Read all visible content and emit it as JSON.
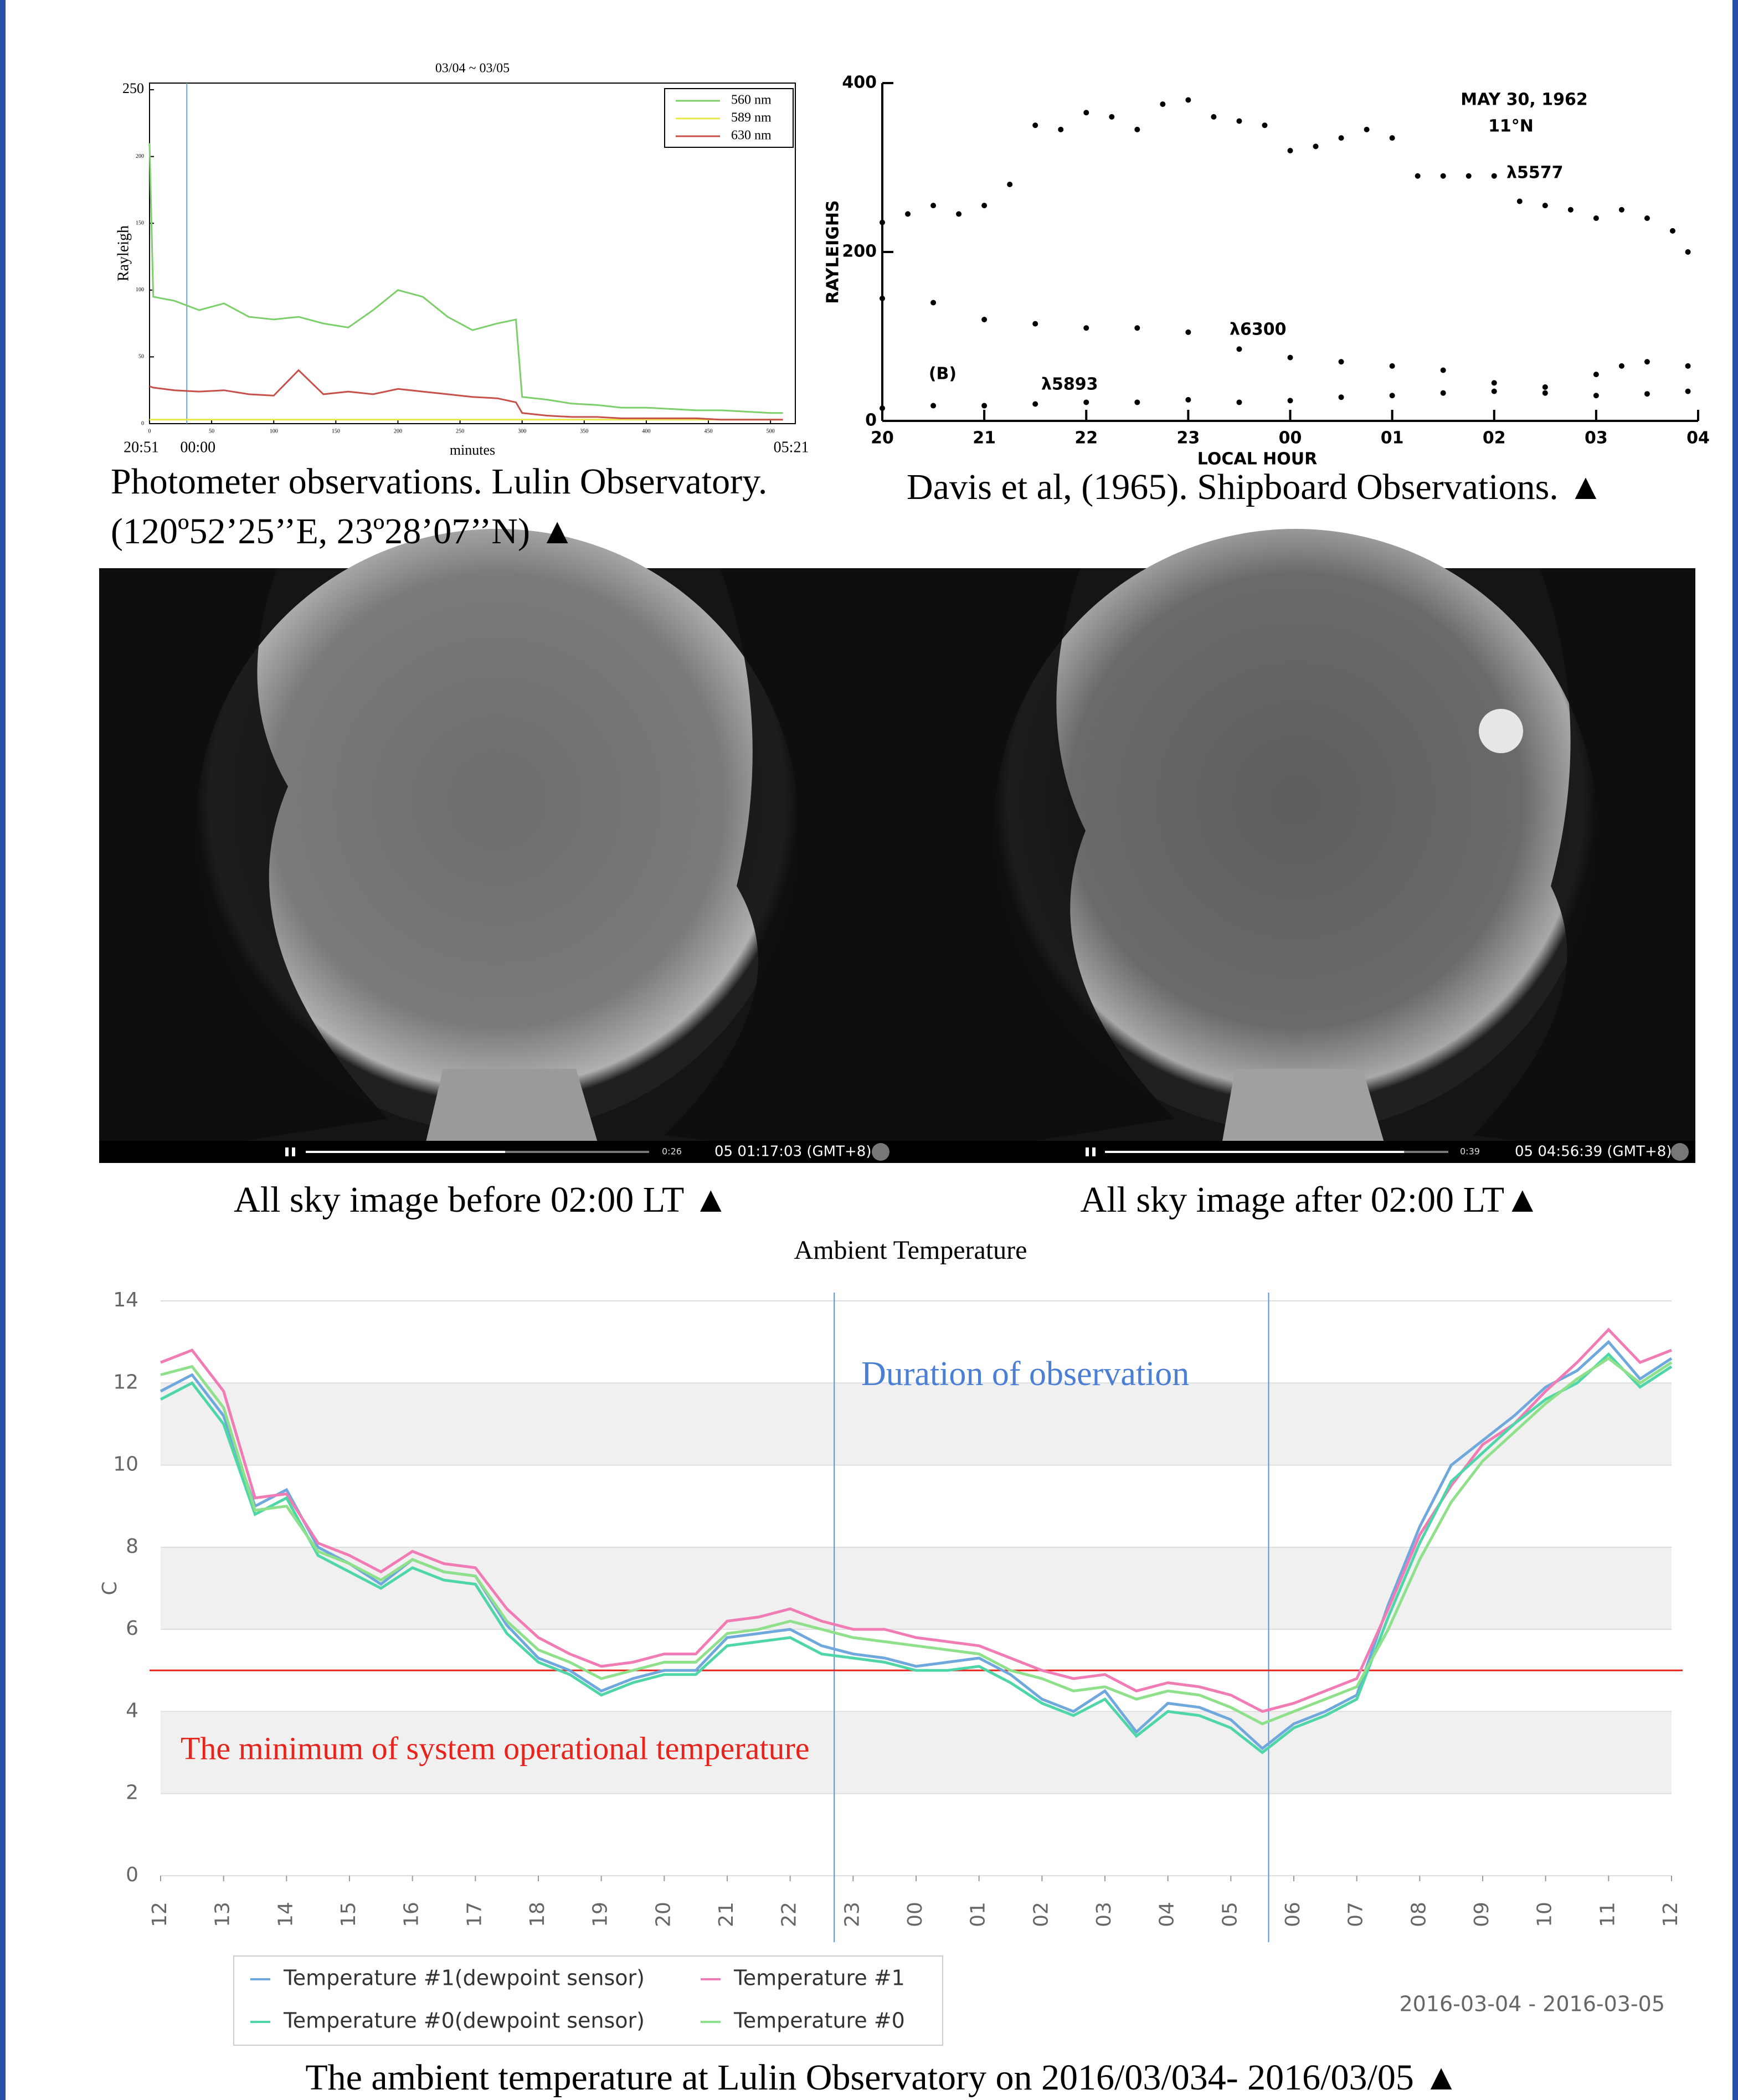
{
  "chart_data": [
    {
      "type": "line",
      "title": "03/04 ~ 03/05",
      "y_label": "Rayleigh",
      "x_label": "minutes",
      "x": [
        0,
        3,
        20,
        40,
        60,
        80,
        100,
        120,
        140,
        160,
        180,
        200,
        220,
        240,
        260,
        280,
        295,
        300,
        320,
        340,
        360,
        380,
        400,
        420,
        440,
        460,
        480,
        500,
        510
      ],
      "series": [
        {
          "name": "560 nm",
          "color": "#7ccf6a",
          "values": [
            210,
            95,
            92,
            85,
            90,
            80,
            78,
            80,
            75,
            72,
            85,
            100,
            95,
            80,
            70,
            75,
            78,
            20,
            18,
            15,
            14,
            12,
            12,
            11,
            10,
            10,
            9,
            8,
            8
          ]
        },
        {
          "name": "589 nm",
          "color": "#e8e84a",
          "values": [
            3,
            3,
            3,
            3,
            3,
            3,
            3,
            3,
            3,
            3,
            3,
            3,
            3,
            3,
            3,
            3,
            3,
            3,
            3,
            3,
            3,
            3,
            3,
            3,
            3,
            3,
            3,
            3,
            3
          ]
        },
        {
          "name": "630 nm",
          "color": "#c8504a",
          "values": [
            28,
            27,
            25,
            24,
            25,
            22,
            21,
            40,
            22,
            24,
            22,
            26,
            24,
            22,
            20,
            19,
            16,
            8,
            6,
            5,
            5,
            4,
            4,
            4,
            4,
            3,
            3,
            3,
            3
          ]
        }
      ],
      "xlim": [
        0,
        520
      ],
      "ylim": [
        0,
        255
      ],
      "xticks": [
        0,
        50,
        100,
        150,
        200,
        250,
        300,
        350,
        400,
        450,
        500
      ],
      "yticks": [
        0,
        50,
        100,
        150,
        200,
        250
      ],
      "x2ticks": [
        {
          "value": 0,
          "label": "20:51"
        },
        {
          "value": 30,
          "label": "00:00"
        },
        {
          "value": 510,
          "label": "05:21"
        }
      ],
      "vlines": [
        30
      ],
      "vline_color": "#6aa6c8",
      "legend": "upper right",
      "grid": false
    },
    {
      "type": "scatter",
      "y_label": "RAYLEIGHS",
      "x_label": "LOCAL HOUR",
      "annotations": [
        "MAY 30, 1962",
        "11°N",
        "(B)"
      ],
      "series": [
        {
          "name": "λ5577",
          "color": "#000000",
          "x": [
            20,
            20.25,
            20.5,
            20.75,
            21,
            21.25,
            21.5,
            21.75,
            22,
            22.25,
            22.5,
            22.75,
            23,
            23.25,
            23.5,
            23.75,
            24,
            24.25,
            24.5,
            24.75,
            25,
            25.25,
            25.5,
            25.75,
            26,
            26.25,
            26.5,
            26.75,
            27,
            27.25,
            27.5,
            27.75,
            27.9
          ],
          "values": [
            235,
            245,
            255,
            245,
            255,
            280,
            350,
            345,
            365,
            360,
            345,
            375,
            380,
            360,
            355,
            350,
            320,
            325,
            335,
            345,
            335,
            290,
            290,
            290,
            290,
            260,
            255,
            250,
            240,
            250,
            240,
            225,
            200
          ]
        },
        {
          "name": "λ6300",
          "color": "#000000",
          "x": [
            20,
            20.5,
            21,
            21.5,
            22,
            22.5,
            23,
            23.5,
            24,
            24.5,
            25,
            25.5,
            26,
            26.5,
            27,
            27.25,
            27.5,
            27.9
          ],
          "values": [
            145,
            140,
            120,
            115,
            110,
            110,
            105,
            85,
            75,
            70,
            65,
            60,
            45,
            40,
            55,
            65,
            70,
            65
          ]
        },
        {
          "name": "λ5893",
          "color": "#000000",
          "x": [
            20,
            20.5,
            21,
            21.5,
            22,
            22.5,
            23,
            23.5,
            24,
            24.5,
            25,
            25.5,
            26,
            26.5,
            27,
            27.5,
            27.9
          ],
          "values": [
            15,
            18,
            18,
            20,
            22,
            22,
            25,
            22,
            24,
            28,
            30,
            33,
            35,
            33,
            30,
            32,
            35
          ]
        }
      ],
      "xlim": [
        20,
        28
      ],
      "ylim": [
        0,
        400
      ],
      "xticks": [
        20,
        21,
        22,
        23,
        {
          "value": 24,
          "label": "00"
        },
        {
          "value": 25,
          "label": "01"
        },
        {
          "value": 26,
          "label": "02"
        },
        {
          "value": 27,
          "label": "03"
        },
        {
          "value": 28,
          "label": "04"
        }
      ],
      "yticks": [
        0,
        200,
        400
      ],
      "grid": false
    },
    {
      "type": "line",
      "title": "Ambient Temperature",
      "y_label": "C",
      "date_range": "2016-03-04 - 2016-03-05",
      "annotations": [
        "Duration of observation",
        "The minimum of system operational temperature"
      ],
      "x": [
        12,
        12.5,
        13,
        13.5,
        14,
        14.5,
        15,
        15.5,
        16,
        16.5,
        17,
        17.5,
        18,
        18.5,
        19,
        19.5,
        20,
        20.5,
        21,
        21.5,
        22,
        22.5,
        23,
        23.5,
        24,
        24.5,
        25,
        25.5,
        26,
        26.5,
        27,
        27.5,
        28,
        28.5,
        29,
        29.5,
        30,
        30.5,
        31,
        31.5,
        32,
        32.5,
        33,
        33.5,
        34,
        34.5,
        35,
        35.5,
        36
      ],
      "series": [
        {
          "name": "Temperature #1(dewpoint sensor)",
          "color": "#6fa8dc",
          "values": [
            11.8,
            12.2,
            11.2,
            9.0,
            9.4,
            8.0,
            7.6,
            7.1,
            7.7,
            7.4,
            7.3,
            6.1,
            5.3,
            5.0,
            4.5,
            4.8,
            5.0,
            5.0,
            5.8,
            5.9,
            6.0,
            5.6,
            5.4,
            5.3,
            5.1,
            5.2,
            5.3,
            4.9,
            4.3,
            4.0,
            4.5,
            3.5,
            4.2,
            4.1,
            3.8,
            3.1,
            3.7,
            4.0,
            4.4,
            6.6,
            8.5,
            10.0,
            10.6,
            11.2,
            11.9,
            12.3,
            13.0,
            12.1,
            12.6
          ]
        },
        {
          "name": "Temperature #1",
          "color": "#f07bb5",
          "values": [
            12.5,
            12.8,
            11.8,
            9.2,
            9.3,
            8.1,
            7.8,
            7.4,
            7.9,
            7.6,
            7.5,
            6.5,
            5.8,
            5.4,
            5.1,
            5.2,
            5.4,
            5.4,
            6.2,
            6.3,
            6.5,
            6.2,
            6.0,
            6.0,
            5.8,
            5.7,
            5.6,
            5.3,
            5.0,
            4.8,
            4.9,
            4.5,
            4.7,
            4.6,
            4.4,
            4.0,
            4.2,
            4.5,
            4.8,
            6.5,
            8.3,
            9.5,
            10.5,
            11.0,
            11.8,
            12.5,
            13.3,
            12.5,
            12.8
          ]
        },
        {
          "name": "Temperature #0(dewpoint sensor)",
          "color": "#4fd6a8",
          "values": [
            11.6,
            12.0,
            11.0,
            8.8,
            9.2,
            7.8,
            7.4,
            7.0,
            7.5,
            7.2,
            7.1,
            5.9,
            5.2,
            4.9,
            4.4,
            4.7,
            4.9,
            4.9,
            5.6,
            5.7,
            5.8,
            5.4,
            5.3,
            5.2,
            5.0,
            5.0,
            5.1,
            4.7,
            4.2,
            3.9,
            4.3,
            3.4,
            4.0,
            3.9,
            3.6,
            3.0,
            3.6,
            3.9,
            4.3,
            6.3,
            8.1,
            9.6,
            10.3,
            11.0,
            11.6,
            12.0,
            12.7,
            11.9,
            12.4
          ]
        },
        {
          "name": "Temperature #0",
          "color": "#8fe08a",
          "values": [
            12.2,
            12.4,
            11.4,
            8.9,
            9.0,
            7.9,
            7.6,
            7.2,
            7.7,
            7.4,
            7.3,
            6.2,
            5.5,
            5.2,
            4.8,
            5.0,
            5.2,
            5.2,
            5.9,
            6.0,
            6.2,
            6.0,
            5.8,
            5.7,
            5.6,
            5.5,
            5.4,
            5.0,
            4.8,
            4.5,
            4.6,
            4.3,
            4.5,
            4.4,
            4.1,
            3.7,
            4.0,
            4.3,
            4.6,
            6.0,
            7.7,
            9.1,
            10.1,
            10.8,
            11.5,
            12.1,
            12.6,
            12.0,
            12.5
          ]
        }
      ],
      "xlim": [
        12,
        36
      ],
      "ylim": [
        0,
        14
      ],
      "xticks": [
        12,
        13,
        14,
        15,
        16,
        17,
        18,
        19,
        20,
        21,
        22,
        23,
        {
          "value": 24,
          "label": "00"
        },
        {
          "value": 25,
          "label": "01"
        },
        {
          "value": 26,
          "label": "02"
        },
        {
          "value": 27,
          "label": "03"
        },
        {
          "value": 28,
          "label": "04"
        },
        {
          "value": 29,
          "label": "05"
        },
        {
          "value": 30,
          "label": "06"
        },
        {
          "value": 31,
          "label": "07"
        },
        {
          "value": 32,
          "label": "08"
        },
        {
          "value": 33,
          "label": "09"
        },
        {
          "value": 34,
          "label": "10"
        },
        {
          "value": 35,
          "label": "11"
        },
        {
          "value": 36,
          "label": "12"
        }
      ],
      "yticks": [
        0,
        2,
        4,
        6,
        8,
        10,
        12,
        14
      ],
      "hlines": [
        5
      ],
      "hline_color": "#e8231b",
      "vlines": [
        22.7,
        29.6
      ],
      "vline_color": "#5b93d6",
      "grid": true,
      "legend": "lower left"
    }
  ],
  "images": [
    {
      "timestamp": "05 01:17:03 (GMT+8)",
      "elapsed": "0:26"
    },
    {
      "timestamp": "05 04:56:39 (GMT+8)",
      "elapsed": "0:39"
    }
  ],
  "captions": [
    "Photometer observations. Lulin Observatory.",
    "(120º52’25’’E, 23º28’07’’N) ▲",
    "Davis et al, (1965). Shipboard Observations. ▲",
    "All sky image before 02:00 LT ▲",
    "All sky image after 02:00 LT▲",
    "The ambient temperature at Lulin Observatory on 2016/03/034- 2016/03/05 ▲"
  ]
}
